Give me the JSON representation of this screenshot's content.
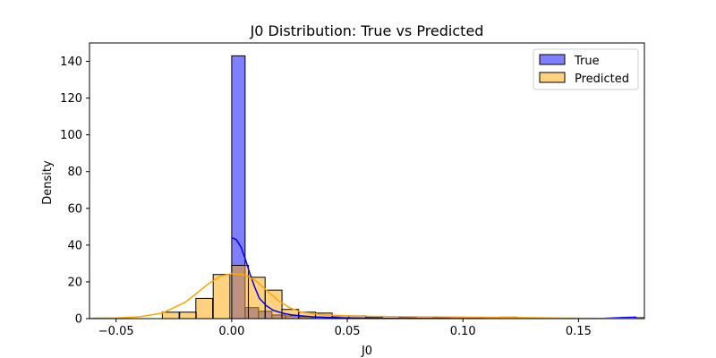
{
  "chart_data": {
    "type": "bar",
    "title": "J0 Distribution: True vs Predicted",
    "xlabel": "J0",
    "ylabel": "Density",
    "xlim": [
      -0.0615,
      0.1785
    ],
    "ylim": [
      0,
      150
    ],
    "xticks": [
      -0.05,
      0.0,
      0.05,
      0.1,
      0.15
    ],
    "xtick_labels": [
      "−0.05",
      "0.00",
      "0.05",
      "0.10",
      "0.15"
    ],
    "yticks": [
      0,
      20,
      40,
      60,
      80,
      100,
      120,
      140
    ],
    "ytick_labels": [
      "0",
      "20",
      "40",
      "60",
      "80",
      "100",
      "120",
      "140"
    ],
    "grid": false,
    "legend_position": "top-right",
    "series": [
      {
        "name": "True",
        "color": "#0000ff",
        "bin_width": 0.0058,
        "bins": [
          {
            "x0": 0.0,
            "height": 143
          },
          {
            "x0": 0.0058,
            "height": 6
          },
          {
            "x0": 0.0116,
            "height": 4
          },
          {
            "x0": 0.0174,
            "height": 2
          },
          {
            "x0": 0.0232,
            "height": 1.5
          },
          {
            "x0": 0.029,
            "height": 1
          },
          {
            "x0": 0.0348,
            "height": 0.8
          },
          {
            "x0": 0.0406,
            "height": 0.6
          },
          {
            "x0": 0.0464,
            "height": 0.4
          },
          {
            "x0": 0.0522,
            "height": 0.3
          },
          {
            "x0": 0.174,
            "height": 0.5
          }
        ],
        "kde": {
          "x": [
            0.0,
            0.002,
            0.004,
            0.006,
            0.008,
            0.01,
            0.012,
            0.015,
            0.018,
            0.022,
            0.026,
            0.03,
            0.035,
            0.04,
            0.05,
            0.06,
            0.08,
            0.1,
            0.12,
            0.14,
            0.16,
            0.17,
            0.175
          ],
          "y": [
            44,
            43,
            39,
            32,
            24,
            17,
            11,
            7,
            4.5,
            3,
            2,
            1.5,
            1,
            0.7,
            0.4,
            0.2,
            0.1,
            0.08,
            0.06,
            0.05,
            0.1,
            0.6,
            0.8
          ]
        }
      },
      {
        "name": "Predicted",
        "color": "#ffa500",
        "bin_width": 0.00725,
        "bins": [
          {
            "x0": -0.0595,
            "height": 0.3
          },
          {
            "x0": -0.03,
            "height": 3.5
          },
          {
            "x0": -0.0225,
            "height": 3.5
          },
          {
            "x0": -0.0155,
            "height": 11
          },
          {
            "x0": -0.008,
            "height": 24
          },
          {
            "x0": 0.0,
            "height": 29
          },
          {
            "x0": 0.0072,
            "height": 22.5
          },
          {
            "x0": 0.0145,
            "height": 15.5
          },
          {
            "x0": 0.0217,
            "height": 5
          },
          {
            "x0": 0.029,
            "height": 3.5
          },
          {
            "x0": 0.0362,
            "height": 3
          },
          {
            "x0": 0.0435,
            "height": 1.5
          },
          {
            "x0": 0.0507,
            "height": 1.5
          },
          {
            "x0": 0.058,
            "height": 0.8
          },
          {
            "x0": 0.0725,
            "height": 0.8
          },
          {
            "x0": 0.087,
            "height": 0.5
          },
          {
            "x0": 0.1015,
            "height": 0.5
          },
          {
            "x0": 0.116,
            "height": 0.8
          },
          {
            "x0": 0.1305,
            "height": 0.3
          }
        ],
        "kde": {
          "x": [
            -0.0615,
            -0.05,
            -0.04,
            -0.03,
            -0.02,
            -0.015,
            -0.01,
            -0.005,
            0.0,
            0.005,
            0.01,
            0.015,
            0.02,
            0.025,
            0.03,
            0.04,
            0.05,
            0.06,
            0.08,
            0.1,
            0.12,
            0.14,
            0.16,
            0.1785
          ],
          "y": [
            0.1,
            0.3,
            1,
            3,
            9,
            14,
            19,
            23,
            24.5,
            24,
            21,
            15.5,
            10,
            6,
            3.5,
            2,
            1.5,
            1.2,
            1,
            0.8,
            0.6,
            0.3,
            0.1,
            0.05
          ]
        }
      }
    ]
  }
}
